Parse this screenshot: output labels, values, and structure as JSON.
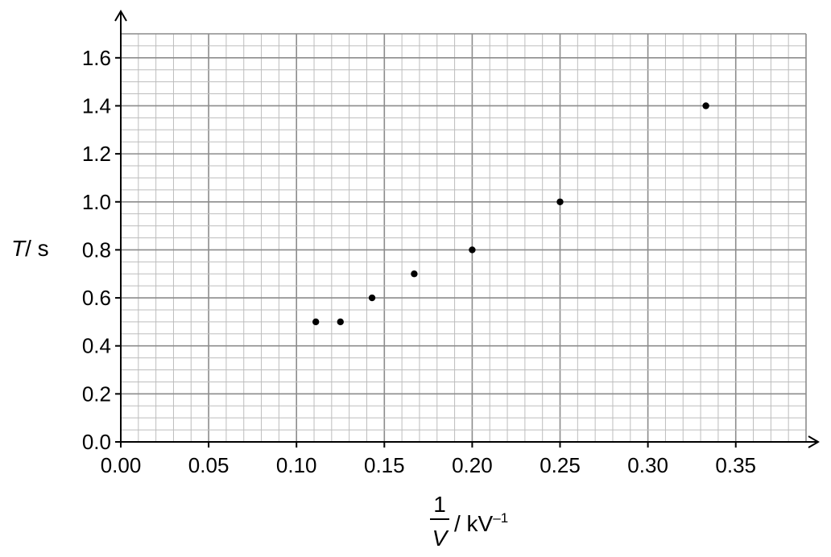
{
  "chart_data": {
    "type": "scatter",
    "x": [
      0.111,
      0.125,
      0.143,
      0.167,
      0.2,
      0.25,
      0.333
    ],
    "y": [
      0.5,
      0.5,
      0.6,
      0.7,
      0.8,
      1.0,
      1.4
    ],
    "xlim": [
      0,
      0.39
    ],
    "ylim": [
      0,
      1.7
    ],
    "x_ticks": [
      "0.00",
      "0.05",
      "0.10",
      "0.15",
      "0.20",
      "0.25",
      "0.30",
      "0.35"
    ],
    "y_ticks": [
      "0.0",
      "0.2",
      "0.4",
      "0.6",
      "0.8",
      "1.0",
      "1.2",
      "1.4",
      "1.6"
    ],
    "x_tick_values": [
      0,
      0.05,
      0.1,
      0.15,
      0.2,
      0.25,
      0.3,
      0.35
    ],
    "y_tick_values": [
      0,
      0.2,
      0.4,
      0.6,
      0.8,
      1.0,
      1.2,
      1.4,
      1.6
    ],
    "ylabel": {
      "symbol": "T",
      "unit": "/ s"
    },
    "xlabel": {
      "numerator": "1",
      "denominator": "V",
      "unit": "/ kV",
      "unit_exponent": "–1"
    },
    "grid": true,
    "colors": {
      "major_grid": "#8c8c8c",
      "minor_grid": "#bdbdbd",
      "axis": "#000000",
      "marker": "#000000"
    }
  }
}
